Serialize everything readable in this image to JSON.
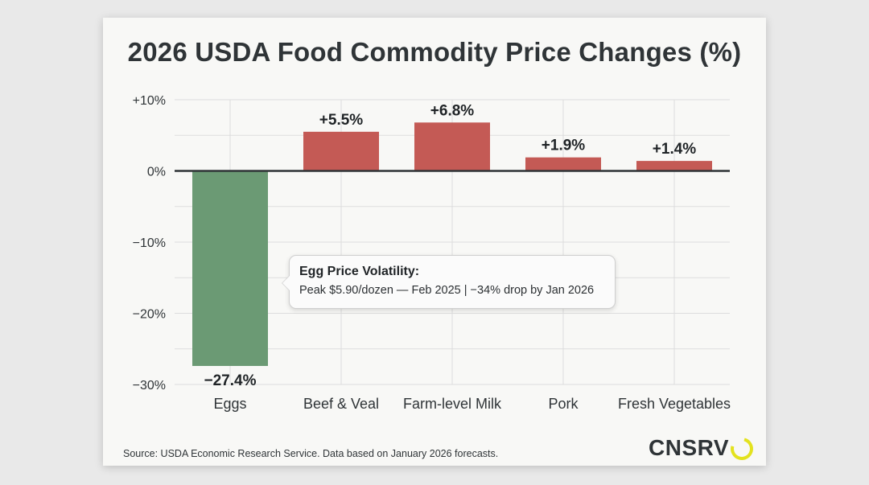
{
  "chart_data": {
    "type": "bar",
    "title": "2026 USDA Food Commodity Price Changes (%)",
    "categories": [
      "Eggs",
      "Beef & Veal",
      "Farm-level Milk",
      "Pork",
      "Fresh Vegetables"
    ],
    "values": [
      -27.4,
      5.5,
      6.8,
      1.9,
      1.4
    ],
    "data_labels": [
      "−27.4%",
      "+5.5%",
      "+6.8%",
      "+1.9%",
      "+1.4%"
    ],
    "ylim": [
      -30,
      10
    ],
    "yticks": [
      10,
      0,
      -10,
      -20,
      -30
    ],
    "ytick_labels": [
      "+10%",
      "0%",
      "−10%",
      "−20%",
      "−30%"
    ],
    "xlabel": "",
    "ylabel": "",
    "grid": true,
    "colors": {
      "positive": "#c45a55",
      "negative": "#6b9a74",
      "zero_line": "#2f3437",
      "grid": "#dddddd"
    }
  },
  "annotation": {
    "title": "Egg Price Volatility:",
    "body": "Peak $5.90/dozen — Feb 2025 | −34% drop by Jan 2026"
  },
  "footer": {
    "source": "Source: USDA Economic Research Service. Data based on January 2026 forecasts.",
    "brand": "CNSRV",
    "brand_ring_color": "#e3e21e"
  }
}
